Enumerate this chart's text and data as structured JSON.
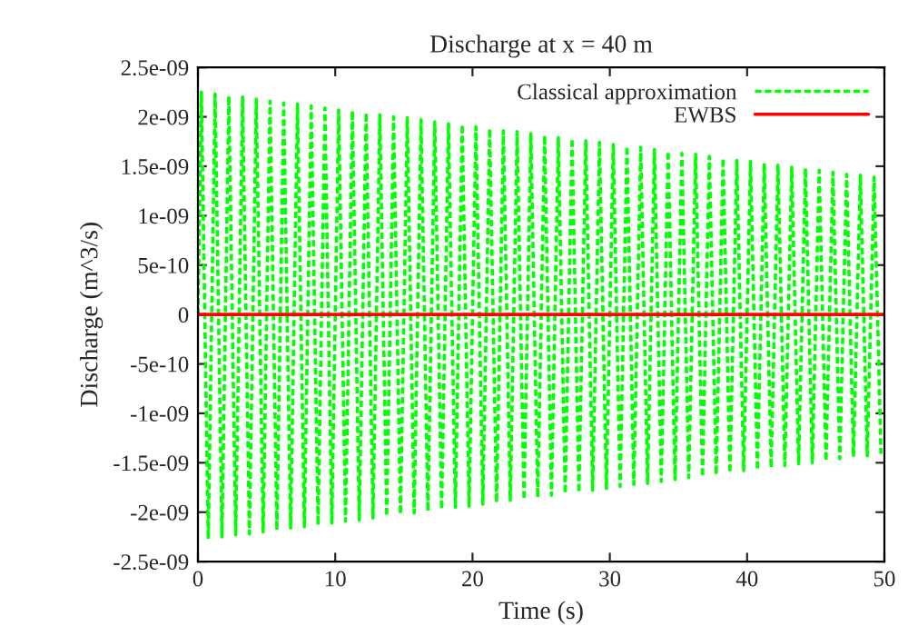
{
  "chart_data": {
    "type": "line",
    "title": "Discharge at x = 40 m",
    "xlabel": "Time (s)",
    "ylabel": "Discharge (m^3/s)",
    "xlim": [
      0,
      50
    ],
    "xticks": [
      0,
      10,
      20,
      30,
      40,
      50
    ],
    "ylim": [
      -2.5e-09,
      2.5e-09
    ],
    "yticks": [
      {
        "value": -2.5e-09,
        "label": "-2.5e-09"
      },
      {
        "value": -2e-09,
        "label": "-2e-09"
      },
      {
        "value": -1.5e-09,
        "label": "-1.5e-09"
      },
      {
        "value": -1e-09,
        "label": "-1e-09"
      },
      {
        "value": -5e-10,
        "label": "-5e-10"
      },
      {
        "value": 0,
        "label": "0"
      },
      {
        "value": 5e-10,
        "label": "5e-10"
      },
      {
        "value": 1e-09,
        "label": "1e-09"
      },
      {
        "value": 1.5e-09,
        "label": "1.5e-09"
      },
      {
        "value": 2e-09,
        "label": "2e-09"
      },
      {
        "value": 2.5e-09,
        "label": "2.5e-09"
      }
    ],
    "grid": false,
    "legend": "top right",
    "series": [
      {
        "name": "Classical approximation",
        "color": "#00ff00",
        "line_style": "dashed",
        "x": [
          0,
          0.25,
          0.75,
          1.25,
          1.75,
          2.25,
          2.75,
          3.25,
          3.75,
          4.25,
          4.75,
          5.25,
          5.75,
          6.25,
          6.75,
          7.25,
          7.75,
          8.25,
          8.75,
          9.25,
          9.75,
          10.25,
          10.75,
          11.25,
          11.75,
          12.25,
          12.75,
          13.25,
          13.75,
          14.25,
          14.75,
          15.25,
          15.75,
          16.25,
          16.75,
          17.25,
          17.75,
          18.25,
          18.75,
          19.25,
          19.75,
          20.25,
          20.75,
          21.25,
          21.75,
          22.25,
          22.75,
          23.25,
          23.75,
          24.25,
          24.75,
          25.25,
          25.75,
          26.25,
          26.75,
          27.25,
          27.75,
          28.25,
          28.75,
          29.25,
          29.75,
          30.25,
          30.75,
          31.25,
          31.75,
          32.25,
          32.75,
          33.25,
          33.75,
          34.25,
          34.75,
          35.25,
          35.75,
          36.25,
          36.75,
          37.25,
          37.75,
          38.25,
          38.75,
          39.25,
          39.75,
          40.25,
          40.75,
          41.25,
          41.75,
          42.25,
          42.75,
          43.25,
          43.75,
          44.25,
          44.75,
          45.25,
          45.75,
          46.25,
          46.75,
          47.25,
          47.75,
          48.25,
          48.75,
          49.25,
          49.75
        ],
        "values": [
          0,
          2.25e-09,
          -2.27e-09,
          2.23e-09,
          -2.25e-09,
          2.21e-09,
          -2.23e-09,
          2.2e-09,
          -2.22e-09,
          2.18e-09,
          -2.2e-09,
          2.16e-09,
          -2.18e-09,
          2.14e-09,
          -2.16e-09,
          2.13e-09,
          -2.15e-09,
          2.11e-09,
          -2.13e-09,
          2.09e-09,
          -2.11e-09,
          2.07e-09,
          -2.09e-09,
          2.06e-09,
          -2.08e-09,
          2.04e-09,
          -2.06e-09,
          2.02e-09,
          -2.04e-09,
          2e-09,
          -2.02e-09,
          1.99e-09,
          -2.01e-09,
          1.97e-09,
          -1.99e-09,
          1.95e-09,
          -1.97e-09,
          1.93e-09,
          -1.95e-09,
          1.92e-09,
          -1.94e-09,
          1.9e-09,
          -1.92e-09,
          1.88e-09,
          -1.9e-09,
          1.86e-09,
          -1.88e-09,
          1.85e-09,
          -1.87e-09,
          1.83e-09,
          -1.85e-09,
          1.81e-09,
          -1.83e-09,
          1.79e-09,
          -1.81e-09,
          1.78e-09,
          -1.8e-09,
          1.76e-09,
          -1.78e-09,
          1.74e-09,
          -1.76e-09,
          1.72e-09,
          -1.74e-09,
          1.7e-09,
          -1.72e-09,
          1.69e-09,
          -1.71e-09,
          1.67e-09,
          -1.69e-09,
          1.65e-09,
          -1.67e-09,
          1.63e-09,
          -1.65e-09,
          1.62e-09,
          -1.64e-09,
          1.6e-09,
          -1.62e-09,
          1.58e-09,
          -1.6e-09,
          1.56e-09,
          -1.58e-09,
          1.55e-09,
          -1.57e-09,
          1.53e-09,
          -1.55e-09,
          1.51e-09,
          -1.53e-09,
          1.49e-09,
          -1.51e-09,
          1.48e-09,
          -1.5e-09,
          1.46e-09,
          -1.48e-09,
          1.44e-09,
          -1.46e-09,
          1.42e-09,
          -1.44e-09,
          1.41e-09,
          -1.43e-09,
          1.39e-09,
          -1.41e-09
        ]
      },
      {
        "name": "EWBS",
        "color": "#ff0000",
        "line_style": "solid",
        "x": [
          0,
          50
        ],
        "values": [
          0,
          0
        ]
      }
    ]
  }
}
